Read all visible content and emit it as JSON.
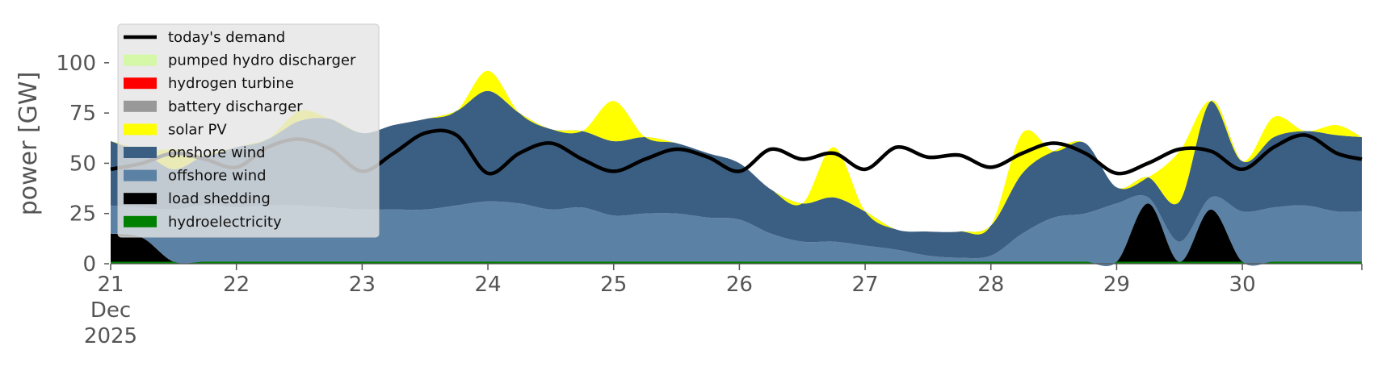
{
  "chart_data": {
    "type": "area",
    "title": "",
    "xlabel": "",
    "ylabel": "power [GW]",
    "ylim": [
      0,
      120
    ],
    "yticks": [
      0,
      25,
      50,
      75,
      100
    ],
    "xlim": [
      0,
      9.95
    ],
    "x_unit": "days from 21 Dec 2025",
    "xtick_labels": [
      [
        "21",
        "Dec",
        "2025"
      ],
      [
        "22"
      ],
      [
        "23"
      ],
      [
        "24"
      ],
      [
        "25"
      ],
      [
        "26"
      ],
      [
        "27"
      ],
      [
        "28"
      ],
      [
        "29"
      ],
      [
        "30"
      ]
    ],
    "grid": false,
    "legend_position": "upper-left",
    "x": [
      0,
      0.25,
      0.5,
      0.75,
      1,
      1.25,
      1.5,
      1.75,
      2,
      2.25,
      2.5,
      2.75,
      3,
      3.25,
      3.5,
      3.75,
      4,
      4.25,
      4.5,
      4.75,
      5,
      5.25,
      5.5,
      5.75,
      6,
      6.25,
      6.5,
      6.75,
      7,
      7.25,
      7.5,
      7.75,
      8,
      8.25,
      8.5,
      8.75,
      9,
      9.25,
      9.5,
      9.75,
      9.95
    ],
    "series": [
      {
        "name": "hydroelectricity",
        "color": "#008000",
        "values": [
          1,
          1,
          1,
          1,
          1,
          1,
          1,
          1,
          1,
          1,
          1,
          1,
          1,
          1,
          1,
          1,
          1,
          1,
          1,
          1,
          1,
          1,
          1,
          1,
          1,
          1,
          1,
          1,
          1,
          1,
          1,
          1,
          1,
          1,
          1,
          1,
          1,
          1,
          1,
          1,
          1
        ]
      },
      {
        "name": "load shedding",
        "color": "#000000",
        "values": [
          14,
          12,
          0,
          0,
          0,
          0,
          0,
          0,
          0,
          0,
          0,
          0,
          0,
          0,
          0,
          0,
          0,
          0,
          0,
          0,
          0,
          0,
          0,
          0,
          0,
          0,
          0,
          0,
          0,
          0,
          0,
          0,
          0,
          29,
          0,
          26,
          0,
          0,
          0,
          0,
          0
        ]
      },
      {
        "name": "offshore wind",
        "color": "#5b81a4",
        "values": [
          14,
          15,
          26,
          28,
          27,
          28,
          28,
          27,
          26,
          26,
          26,
          28,
          30,
          29,
          26,
          27,
          23,
          24,
          24,
          22,
          21,
          14,
          10,
          10,
          8,
          6,
          3,
          2,
          3,
          14,
          22,
          24,
          29,
          3,
          10,
          6,
          25,
          27,
          28,
          25,
          25
        ]
      },
      {
        "name": "onshore wind",
        "color": "#3b5f82",
        "values": [
          32,
          28,
          20,
          25,
          30,
          33,
          42,
          44,
          38,
          42,
          45,
          47,
          55,
          45,
          40,
          38,
          37,
          38,
          35,
          32,
          28,
          22,
          19,
          22,
          17,
          10,
          12,
          13,
          15,
          30,
          33,
          35,
          8,
          10,
          20,
          48,
          25,
          35,
          37,
          38,
          37
        ]
      },
      {
        "name": "solar PV",
        "color": "#ffff00",
        "values": [
          0,
          0,
          10,
          0,
          0,
          0,
          5,
          0,
          0,
          0,
          0,
          0,
          10,
          0,
          0,
          0,
          20,
          0,
          0,
          0,
          0,
          0,
          0,
          25,
          0,
          0,
          0,
          0,
          0,
          20,
          0,
          0,
          0,
          0,
          25,
          0,
          0,
          10,
          0,
          5,
          0
        ]
      },
      {
        "name": "battery discharger",
        "color": "#999999",
        "values": [
          0,
          0,
          0,
          0,
          0,
          0,
          0,
          0,
          0,
          0,
          0,
          0,
          0,
          0,
          0,
          0,
          0,
          0,
          0,
          0,
          0,
          0,
          0,
          0,
          0,
          0,
          0,
          0,
          0,
          0,
          0,
          0,
          0,
          0,
          0,
          0,
          0,
          0,
          0,
          0,
          0
        ]
      },
      {
        "name": "hydrogen turbine",
        "color": "#ff0000",
        "values": [
          0,
          0,
          0,
          0,
          0,
          0,
          0,
          0,
          0,
          0,
          0,
          0,
          0,
          0,
          0,
          0,
          0,
          0,
          0,
          0,
          0,
          0,
          0,
          0,
          0,
          0,
          0,
          0,
          0,
          0,
          0,
          0,
          0,
          0,
          0,
          0,
          0,
          0,
          0,
          0,
          0
        ]
      },
      {
        "name": "pumped hydro discharger",
        "color": "#d4f7a8",
        "values": [
          0,
          0,
          0,
          0,
          0,
          0,
          0,
          0,
          0,
          0,
          0,
          0,
          0,
          0,
          0,
          0,
          0,
          0,
          0,
          0,
          0,
          0,
          0,
          0,
          0,
          0,
          0,
          0,
          0,
          0,
          0,
          0,
          0,
          0,
          0,
          0,
          0,
          0,
          0,
          0,
          0
        ]
      },
      {
        "name": "today's demand",
        "color": "#000000",
        "type": "line",
        "values": [
          47,
          50,
          55,
          52,
          48,
          58,
          62,
          57,
          46,
          55,
          65,
          64,
          45,
          55,
          60,
          52,
          46,
          52,
          57,
          53,
          46,
          57,
          52,
          55,
          47,
          58,
          53,
          54,
          48,
          55,
          60,
          55,
          45,
          50,
          57,
          56,
          47,
          58,
          64,
          55,
          52
        ]
      }
    ],
    "legend": [
      {
        "name": "today's demand",
        "type": "line",
        "color": "#000000"
      },
      {
        "name": "pumped hydro discharger",
        "type": "patch",
        "color": "#d4f7a8"
      },
      {
        "name": "hydrogen turbine",
        "type": "patch",
        "color": "#ff0000"
      },
      {
        "name": "battery discharger",
        "type": "patch",
        "color": "#999999"
      },
      {
        "name": "solar PV",
        "type": "patch",
        "color": "#ffff00"
      },
      {
        "name": "onshore wind",
        "type": "patch",
        "color": "#3b5f82"
      },
      {
        "name": "offshore wind",
        "type": "patch",
        "color": "#5b81a4"
      },
      {
        "name": "load shedding",
        "type": "patch",
        "color": "#000000"
      },
      {
        "name": "hydroelectricity",
        "type": "patch",
        "color": "#008000"
      }
    ]
  }
}
